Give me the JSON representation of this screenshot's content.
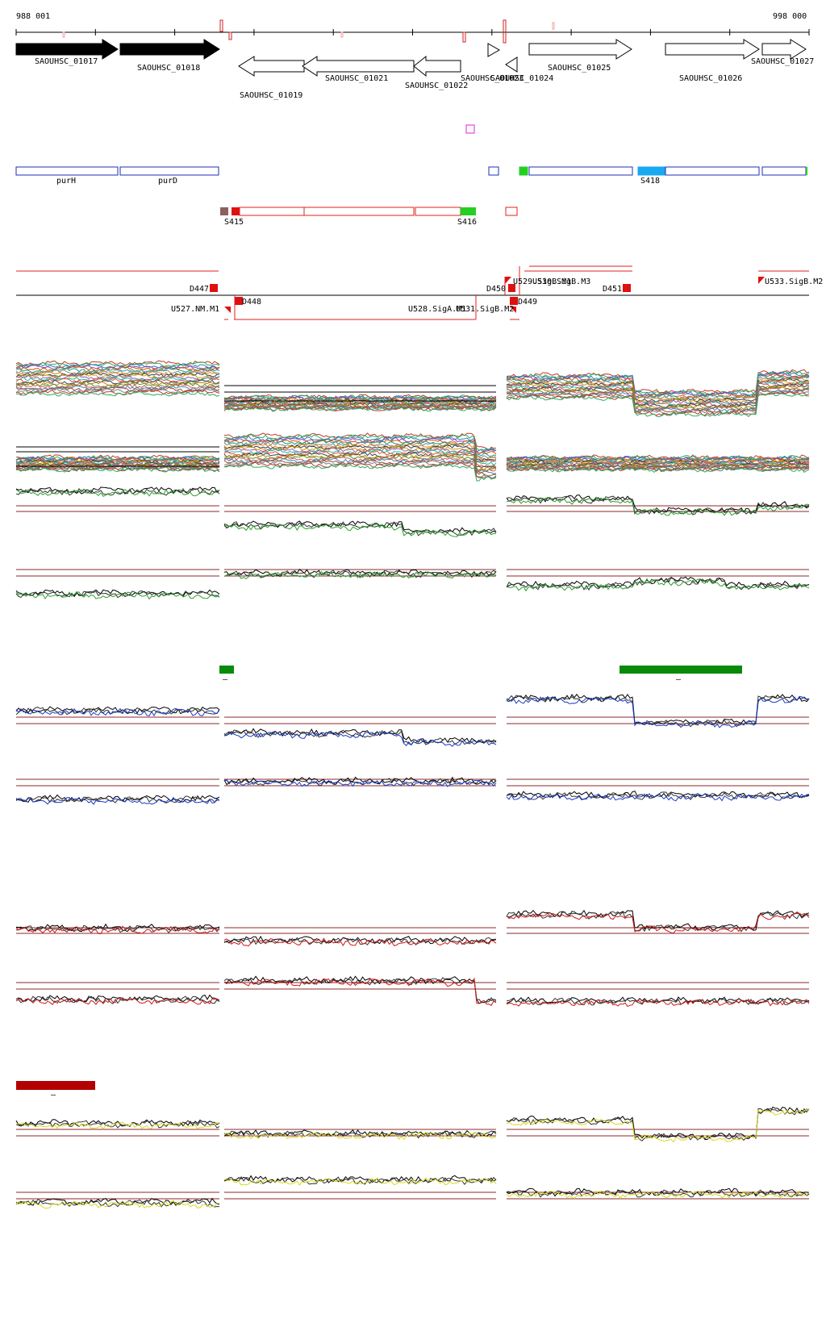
{
  "ruler": {
    "start": "988 001",
    "end": "998 000"
  },
  "genes": [
    {
      "id": "SAOUHSC_01017",
      "strand": "+",
      "filled": true
    },
    {
      "id": "SAOUHSC_01018",
      "strand": "+",
      "filled": true
    },
    {
      "id": "SAOUHSC_01019",
      "strand": "-",
      "filled": false
    },
    {
      "id": "SAOUHSC_01021",
      "strand": "-",
      "filled": false
    },
    {
      "id": "SAOUHSC_01022",
      "strand": "-",
      "filled": false
    },
    {
      "id": "SAOUHSC_01023",
      "strand": "+",
      "filled": false
    },
    {
      "id": "SAOUHSC_01024",
      "strand": "-",
      "filled": false
    },
    {
      "id": "SAOUHSC_01025",
      "strand": "+",
      "filled": false
    },
    {
      "id": "SAOUHSC_01026",
      "strand": "+",
      "filled": false
    },
    {
      "id": "SAOUHSC_01027",
      "strand": "+",
      "filled": false
    }
  ],
  "gene_names": [
    "purH",
    "purD"
  ],
  "operons": [
    "S415",
    "S416",
    "S418"
  ],
  "segments_upper": [
    "D447",
    "D450",
    "D451",
    "U533.SigB.M2"
  ],
  "segments_upper_overlap": [
    "U529.SigB.M1",
    "U530.SigB.M3"
  ],
  "segments_lower": [
    "U527.NM.M1",
    "D448",
    "U528.SigA.M1",
    "U531.SigB.M2",
    "D449"
  ],
  "colors": {
    "gene_fill": "#000000",
    "feature_box": "#1e2fb4",
    "operon": "#e02020",
    "highlight_green": "#0a8a0a",
    "bright_green": "#22d022",
    "cyan": "#1aa8f0",
    "magenta": "#e020e0",
    "condition_green": "#2aa02a",
    "condition_blue": "#1a3ac8",
    "condition_red": "#d01818",
    "condition_yellow": "#d8d820",
    "guide_line": "#8b2a2a",
    "dark_red_bar": "#b30000"
  },
  "condition_markers": [
    "–",
    "–",
    "–"
  ]
}
